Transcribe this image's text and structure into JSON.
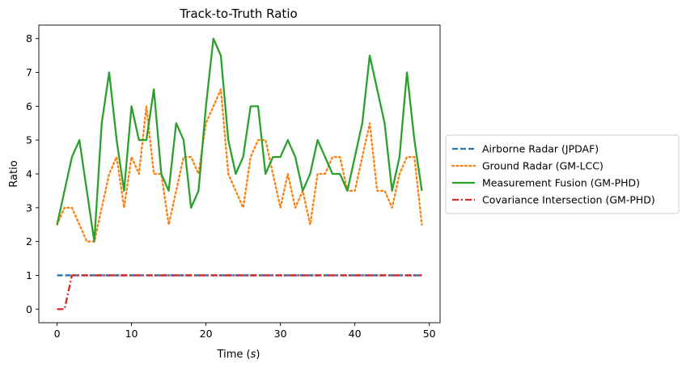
{
  "chart_data": {
    "type": "line",
    "title": "Track-to-Truth Ratio",
    "xlabel": "Time (",
    "xlabel_unit": "s",
    "xlabel_close": ")",
    "ylabel": "Ratio",
    "xlim": [
      -2.45,
      51.45
    ],
    "ylim": [
      -0.4,
      8.4
    ],
    "xticks": [
      0,
      10,
      20,
      30,
      40,
      50
    ],
    "yticks": [
      0,
      1,
      2,
      3,
      4,
      5,
      6,
      7,
      8
    ],
    "grid": false,
    "legend_placement": "center-right-outside",
    "x": [
      0,
      1,
      2,
      3,
      4,
      5,
      6,
      7,
      8,
      9,
      10,
      11,
      12,
      13,
      14,
      15,
      16,
      17,
      18,
      19,
      20,
      21,
      22,
      23,
      24,
      25,
      26,
      27,
      28,
      29,
      30,
      31,
      32,
      33,
      34,
      35,
      36,
      37,
      38,
      39,
      40,
      41,
      42,
      43,
      44,
      45,
      46,
      47,
      48,
      49
    ],
    "series": [
      {
        "name": "Airborne Radar (JPDAF)",
        "color": "#1f77b4",
        "dash": "dashed",
        "values": [
          1,
          1,
          1,
          1,
          1,
          1,
          1,
          1,
          1,
          1,
          1,
          1,
          1,
          1,
          1,
          1,
          1,
          1,
          1,
          1,
          1,
          1,
          1,
          1,
          1,
          1,
          1,
          1,
          1,
          1,
          1,
          1,
          1,
          1,
          1,
          1,
          1,
          1,
          1,
          1,
          1,
          1,
          1,
          1,
          1,
          1,
          1,
          1,
          1,
          1
        ]
      },
      {
        "name": "Ground Radar (GM-LCC)",
        "color": "#ff7f0e",
        "dash": "dotted",
        "values": [
          2.5,
          3,
          3,
          2.5,
          2,
          2,
          3,
          4,
          4.5,
          3,
          4.5,
          4,
          6,
          4,
          4,
          2.5,
          3.5,
          4.5,
          4.5,
          4,
          5.5,
          6,
          6.5,
          4,
          3.5,
          3,
          4.5,
          5,
          5,
          4,
          3,
          4,
          3,
          3.5,
          2.5,
          4,
          4,
          4.5,
          4.5,
          3.5,
          3.5,
          4.5,
          5.5,
          3.5,
          3.5,
          3,
          4,
          4.5,
          4.5,
          2.5
        ]
      },
      {
        "name": "Measurement Fusion (GM-PHD)",
        "color": "#2ca02c",
        "dash": "solid",
        "values": [
          2.5,
          3.5,
          4.5,
          5,
          3.5,
          2,
          5.5,
          7,
          5,
          3.5,
          6,
          5,
          5,
          6.5,
          4,
          3.5,
          5.5,
          5,
          3,
          3.5,
          6,
          8,
          7.5,
          5,
          4,
          4.5,
          6,
          6,
          4,
          4.5,
          4.5,
          5,
          4.5,
          3.5,
          4,
          5,
          4.5,
          4,
          4,
          3.5,
          4.5,
          5.5,
          7.5,
          6.5,
          5.5,
          3.5,
          4.5,
          7,
          5,
          3.5
        ]
      },
      {
        "name": "Covariance Intersection (GM-PHD)",
        "color": "#d62728",
        "dash": "dashdot",
        "values": [
          0,
          0,
          1,
          1,
          1,
          1,
          1,
          1,
          1,
          1,
          1,
          1,
          1,
          1,
          1,
          1,
          1,
          1,
          1,
          1,
          1,
          1,
          1,
          1,
          1,
          1,
          1,
          1,
          1,
          1,
          1,
          1,
          1,
          1,
          1,
          1,
          1,
          1,
          1,
          1,
          1,
          1,
          1,
          1,
          1,
          1,
          1,
          1,
          1,
          1
        ]
      }
    ]
  }
}
